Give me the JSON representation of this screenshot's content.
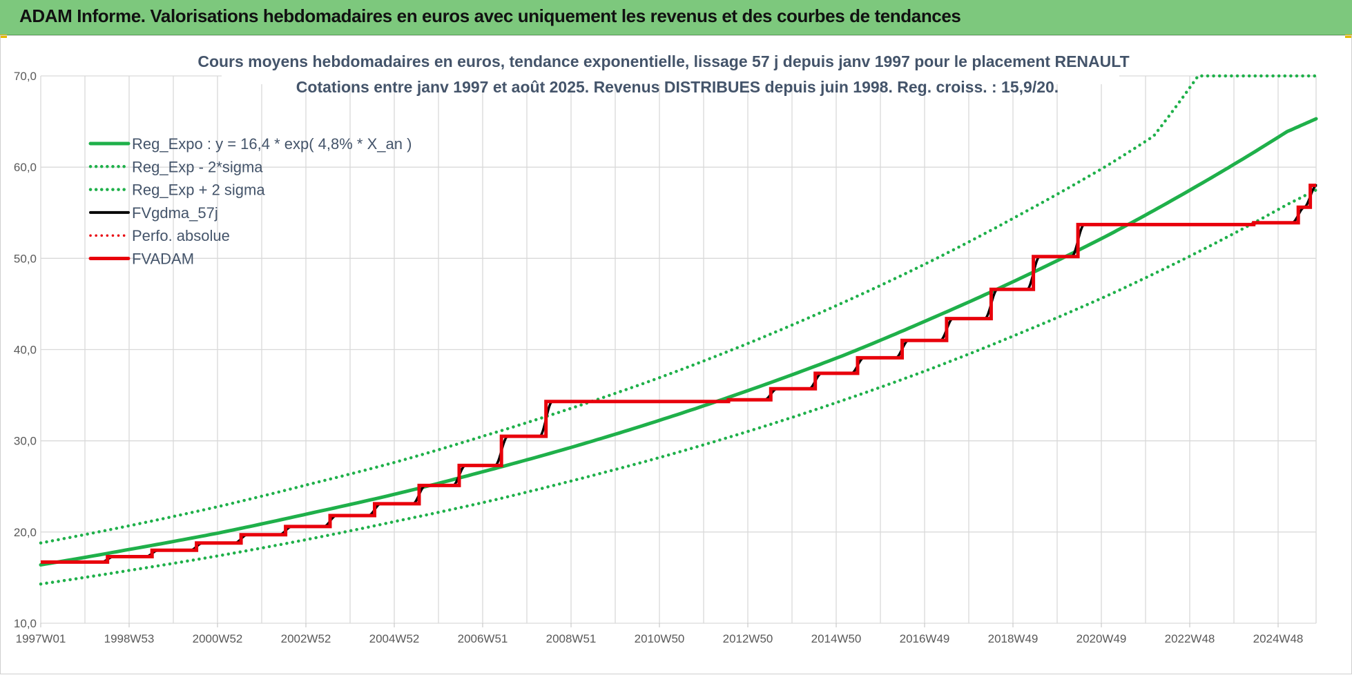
{
  "header": {
    "title": "ADAM Informe. Valorisations hebdomadaires en euros avec uniquement les revenus et des courbes de tendances"
  },
  "chart_data": {
    "type": "line",
    "title": "Cours moyens hebdomadaires en euros, tendance exponentielle, lissage 57 j depuis janv 1997 pour le placement RENAULT",
    "subtitle": "Cotations entre janv 1997 et août 2025. Revenus DISTRIBUES depuis juin 1998. Reg. croiss. : 15,9/20.",
    "x_tick_labels": [
      "1997W01",
      "1998W53",
      "2000W52",
      "2002W52",
      "2004W52",
      "2006W51",
      "2008W51",
      "2010W50",
      "2012W50",
      "2014W50",
      "2016W49",
      "2018W49",
      "2020W49",
      "2022W48",
      "2024W48"
    ],
    "x_range_years": [
      1997.0,
      2025.65
    ],
    "y_tick_labels": [
      "10,0",
      "20,0",
      "30,0",
      "40,0",
      "50,0",
      "60,0",
      "70,0"
    ],
    "ylim": [
      10,
      70
    ],
    "grid": true,
    "legend_position": "top-left",
    "colors": {
      "green": "#1fb04a",
      "black": "#000000",
      "red": "#e8000b",
      "grid": "#d9d9d9"
    },
    "series": [
      {
        "name": "Reg_Expo : y = 16,4 * exp( 4,8% *  X_an )",
        "style": "solid",
        "color": "#1fb04a",
        "x": [
          1997,
          1999,
          2001,
          2003,
          2005,
          2007,
          2009,
          2011,
          2013,
          2015,
          2017,
          2019,
          2021,
          2023,
          2025,
          2025.65
        ],
        "y": [
          16.4,
          18.1,
          19.9,
          22.0,
          24.2,
          26.7,
          29.4,
          32.4,
          35.7,
          39.3,
          43.4,
          47.8,
          52.6,
          58.0,
          63.9,
          65.3
        ]
      },
      {
        "name": "Reg_Exp - 2*sigma",
        "style": "dotted",
        "color": "#1fb04a",
        "x": [
          1997,
          1999,
          2001,
          2003,
          2005,
          2007,
          2009,
          2011,
          2013,
          2015,
          2017,
          2019,
          2021,
          2023,
          2025,
          2025.65
        ],
        "y": [
          14.3,
          15.8,
          17.4,
          19.2,
          21.2,
          23.3,
          25.7,
          28.3,
          31.2,
          34.4,
          37.9,
          41.8,
          46.0,
          50.7,
          55.9,
          57.5
        ]
      },
      {
        "name": "Reg_Exp + 2 sigma",
        "style": "dotted",
        "color": "#1fb04a",
        "x": [
          1997,
          1999,
          2001,
          2003,
          2005,
          2007,
          2009,
          2011,
          2013,
          2015,
          2017,
          2019,
          2021,
          2022,
          2023,
          2025.65
        ],
        "y": [
          18.8,
          20.7,
          22.8,
          25.2,
          27.7,
          30.6,
          33.7,
          37.1,
          40.9,
          45.1,
          49.7,
          54.8,
          60.3,
          63.4,
          70.0,
          70.0
        ]
      },
      {
        "name": "FVgdma_57j",
        "style": "solid",
        "color": "#000000",
        "steps_from": "FVADAM"
      },
      {
        "name": "Perfo. absolue",
        "style": "dotted",
        "color": "#e8000b",
        "values": []
      },
      {
        "name": "FVADAM",
        "style": "solid",
        "color": "#e8000b",
        "steps": [
          {
            "x": 1997.0,
            "y": 16.7
          },
          {
            "x": 1998.5,
            "y": 17.3
          },
          {
            "x": 1999.5,
            "y": 18.0
          },
          {
            "x": 2000.5,
            "y": 18.8
          },
          {
            "x": 2001.5,
            "y": 19.7
          },
          {
            "x": 2002.5,
            "y": 20.6
          },
          {
            "x": 2003.5,
            "y": 21.8
          },
          {
            "x": 2004.5,
            "y": 23.1
          },
          {
            "x": 2005.5,
            "y": 25.1
          },
          {
            "x": 2006.4,
            "y": 27.3
          },
          {
            "x": 2007.35,
            "y": 30.5
          },
          {
            "x": 2008.35,
            "y": 34.3
          },
          {
            "x": 2012.45,
            "y": 34.5
          },
          {
            "x": 2013.4,
            "y": 35.7
          },
          {
            "x": 2014.4,
            "y": 37.4
          },
          {
            "x": 2015.35,
            "y": 39.1
          },
          {
            "x": 2016.35,
            "y": 41.0
          },
          {
            "x": 2017.35,
            "y": 43.4
          },
          {
            "x": 2018.35,
            "y": 46.6
          },
          {
            "x": 2019.3,
            "y": 50.2
          },
          {
            "x": 2020.3,
            "y": 53.7
          },
          {
            "x": 2024.25,
            "y": 53.9
          },
          {
            "x": 2025.25,
            "y": 55.6
          },
          {
            "x": 2025.52,
            "y": 58.0
          }
        ],
        "x_end": 2025.65
      }
    ]
  }
}
